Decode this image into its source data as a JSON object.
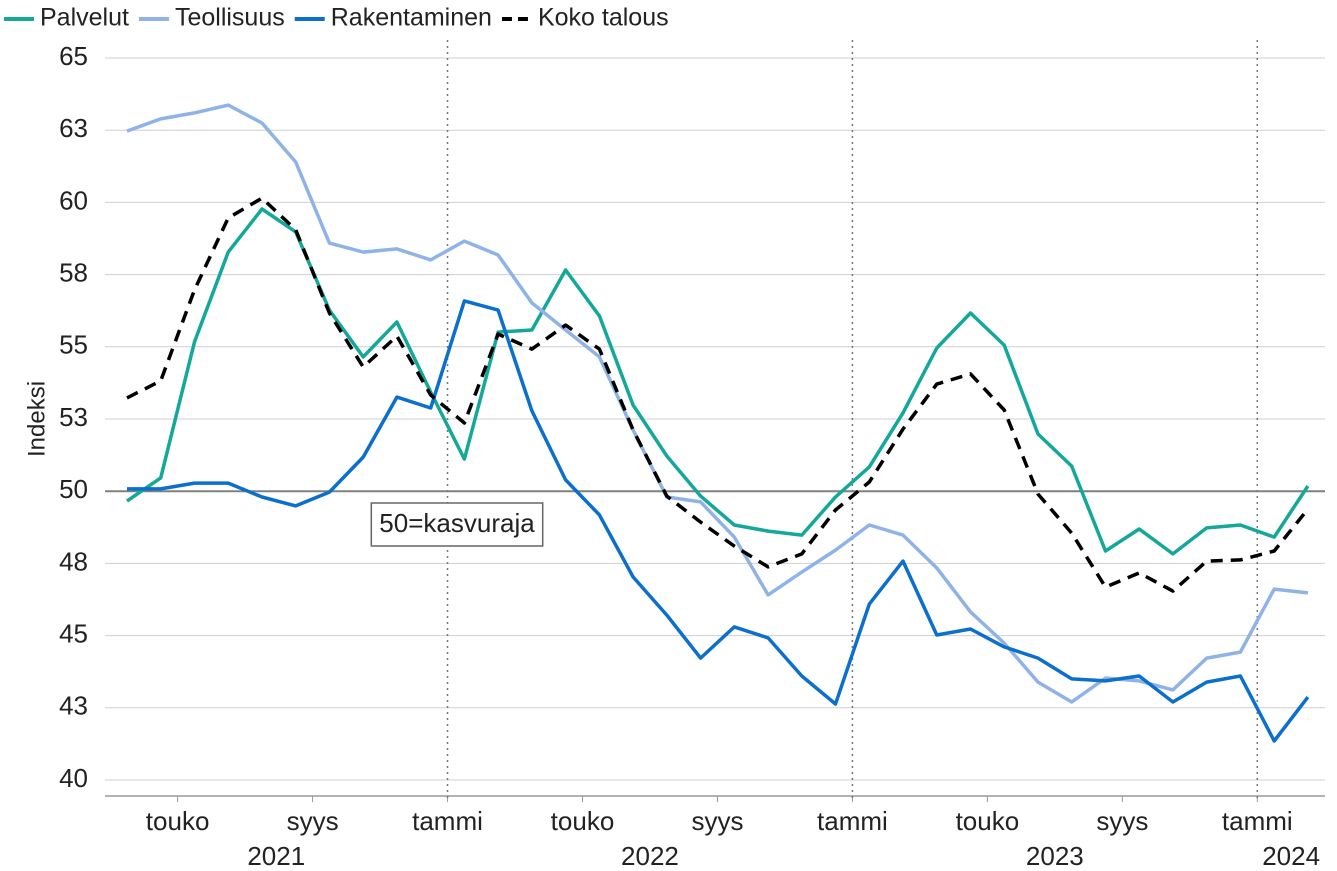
{
  "chart_data": {
    "type": "line",
    "ylabel": "Indeksi",
    "annotation": "50=kasvuraja",
    "reference_line": 50,
    "categories": [
      null,
      null,
      "touko",
      null,
      null,
      null,
      "syys",
      null,
      null,
      null,
      "tammi",
      null,
      null,
      null,
      "touko",
      null,
      null,
      null,
      "syys",
      null,
      null,
      null,
      "tammi",
      null,
      null,
      null,
      "touko",
      null,
      null,
      null,
      "syys",
      null,
      null,
      null,
      "tammi",
      null
    ],
    "years": [
      "2021",
      "2022",
      "2023",
      "2024"
    ],
    "ylim": [
      40,
      65
    ],
    "yticks": [
      40,
      {
        "value": 42.5,
        "label": "43"
      },
      45,
      {
        "value": 47.5,
        "label": "48"
      },
      50,
      {
        "value": 52.5,
        "label": "53"
      },
      55,
      {
        "value": 57.5,
        "label": "58"
      },
      60,
      {
        "value": 62.5,
        "label": "63"
      },
      65
    ],
    "grid": true,
    "legend": "top",
    "series": [
      {
        "name": "Palvelut",
        "color": "#14a89a",
        "values": [
          49.66,
          50.46,
          55.17,
          58.28,
          59.77,
          58.98,
          56.27,
          54.65,
          55.86,
          53.43,
          51.11,
          55.51,
          55.58,
          57.66,
          56.07,
          52.98,
          51.22,
          49.83,
          48.83,
          48.62,
          48.48,
          49.8,
          50.84,
          52.71,
          54.96,
          56.17,
          55.06,
          51.98,
          50.87,
          47.93,
          48.69,
          47.83,
          48.73,
          48.83,
          48.41,
          50.18
        ]
      },
      {
        "name": "Teollisuus",
        "color": "#8fb3e6",
        "values": [
          62.47,
          62.89,
          63.1,
          63.37,
          62.75,
          61.4,
          58.59,
          58.28,
          58.39,
          58.01,
          58.66,
          58.18,
          56.52,
          55.58,
          54.65,
          52.12,
          49.8,
          49.63,
          48.41,
          46.41,
          47.2,
          47.96,
          48.83,
          48.48,
          47.34,
          45.82,
          44.74,
          43.39,
          42.7,
          43.53,
          43.43,
          43.12,
          44.22,
          44.43,
          46.61,
          46.48
        ]
      },
      {
        "name": "Rakentaminen",
        "color": "#0b6fce",
        "values": [
          50.08,
          50.08,
          50.28,
          50.28,
          49.8,
          49.49,
          49.97,
          51.18,
          53.26,
          52.88,
          56.59,
          56.27,
          52.78,
          50.39,
          49.18,
          47.03,
          45.71,
          44.22,
          45.3,
          44.92,
          43.6,
          42.63,
          46.09,
          47.58,
          45.02,
          45.23,
          44.61,
          44.22,
          43.5,
          43.43,
          43.6,
          42.7,
          43.39,
          43.6,
          41.35,
          42.87
        ]
      },
      {
        "name": "Koko talous",
        "color": "#000000",
        "dash": true,
        "values": [
          53.23,
          53.82,
          56.97,
          59.46,
          60.15,
          59.05,
          56.17,
          54.3,
          55.37,
          53.33,
          52.36,
          55.44,
          54.92,
          55.75,
          54.92,
          52.12,
          49.83,
          48.93,
          48.1,
          47.38,
          47.83,
          49.35,
          50.32,
          52.15,
          53.71,
          54.06,
          52.81,
          49.9,
          48.55,
          46.68,
          47.17,
          46.54,
          47.58,
          47.62,
          47.93,
          49.38
        ]
      }
    ]
  }
}
